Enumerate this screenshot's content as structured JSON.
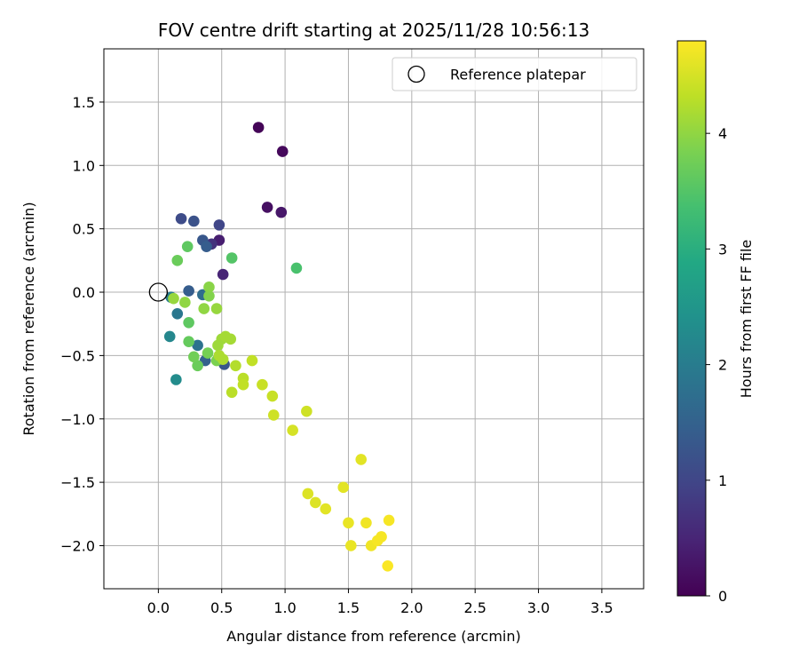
{
  "chart_data": {
    "type": "scatter",
    "title": "FOV centre drift starting at 2025/11/28 10:56:13",
    "xlabel": "Angular distance from reference (arcmin)",
    "ylabel": "Rotation from reference (arcmin)",
    "xlim": [
      -0.43,
      3.83
    ],
    "ylim": [
      -2.34,
      1.92
    ],
    "xticks": [
      0.0,
      0.5,
      1.0,
      1.5,
      2.0,
      2.5,
      3.0,
      3.5
    ],
    "xtick_labels": [
      "0.0",
      "0.5",
      "1.0",
      "1.5",
      "2.0",
      "2.5",
      "3.0",
      "3.5"
    ],
    "yticks": [
      1.5,
      1.0,
      0.5,
      0.0,
      -0.5,
      -1.0,
      -1.5,
      -2.0
    ],
    "ytick_labels": [
      "1.5",
      "1.0",
      "0.5",
      "0.0",
      "−0.5",
      "−1.0",
      "−1.5",
      "−2.0"
    ],
    "grid": true,
    "legend": {
      "position": "top-right",
      "entries": [
        "Reference platepar"
      ]
    },
    "reference_point": {
      "x": 0.0,
      "y": 0.0
    },
    "colorbar": {
      "label": "Hours from first FF file",
      "range": [
        0,
        4.8
      ],
      "ticks": [
        0,
        1,
        2,
        3,
        4
      ],
      "tick_labels": [
        "0",
        "1",
        "2",
        "3",
        "4"
      ],
      "colormap": "viridis"
    },
    "points": [
      {
        "x": 0.79,
        "y": 1.3,
        "h": 0.05
      },
      {
        "x": 0.98,
        "y": 1.11,
        "h": 0.1
      },
      {
        "x": 0.86,
        "y": 0.67,
        "h": 0.2
      },
      {
        "x": 0.97,
        "y": 0.63,
        "h": 0.3
      },
      {
        "x": 0.48,
        "y": 0.41,
        "h": 0.4
      },
      {
        "x": 0.51,
        "y": 0.14,
        "h": 0.5
      },
      {
        "x": 0.42,
        "y": 0.38,
        "h": 0.7
      },
      {
        "x": 0.48,
        "y": 0.53,
        "h": 1.0
      },
      {
        "x": 0.18,
        "y": 0.58,
        "h": 1.1
      },
      {
        "x": 0.28,
        "y": 0.56,
        "h": 1.2
      },
      {
        "x": 0.35,
        "y": 0.41,
        "h": 1.3
      },
      {
        "x": 0.38,
        "y": 0.36,
        "h": 1.4
      },
      {
        "x": 0.24,
        "y": 0.01,
        "h": 1.4
      },
      {
        "x": 0.52,
        "y": -0.57,
        "h": 1.3
      },
      {
        "x": 0.37,
        "y": -0.54,
        "h": 1.5
      },
      {
        "x": 0.35,
        "y": -0.02,
        "h": 1.7
      },
      {
        "x": 0.31,
        "y": -0.42,
        "h": 1.8
      },
      {
        "x": 0.15,
        "y": -0.17,
        "h": 1.9
      },
      {
        "x": 0.1,
        "y": -0.04,
        "h": 2.0
      },
      {
        "x": 0.09,
        "y": -0.35,
        "h": 2.2
      },
      {
        "x": 0.14,
        "y": -0.69,
        "h": 2.3
      },
      {
        "x": 1.09,
        "y": 0.19,
        "h": 3.4
      },
      {
        "x": 0.58,
        "y": 0.27,
        "h": 3.5
      },
      {
        "x": 0.23,
        "y": 0.36,
        "h": 3.6
      },
      {
        "x": 0.15,
        "y": 0.25,
        "h": 3.7
      },
      {
        "x": 0.24,
        "y": -0.24,
        "h": 3.6
      },
      {
        "x": 0.24,
        "y": -0.39,
        "h": 3.65
      },
      {
        "x": 0.31,
        "y": -0.58,
        "h": 3.7
      },
      {
        "x": 0.28,
        "y": -0.51,
        "h": 3.75
      },
      {
        "x": 0.39,
        "y": -0.48,
        "h": 3.8
      },
      {
        "x": 0.46,
        "y": -0.54,
        "h": 3.85
      },
      {
        "x": 0.4,
        "y": -0.03,
        "h": 3.9
      },
      {
        "x": 0.4,
        "y": 0.04,
        "h": 3.95
      },
      {
        "x": 0.21,
        "y": -0.08,
        "h": 4.0
      },
      {
        "x": 0.36,
        "y": -0.13,
        "h": 4.0
      },
      {
        "x": 0.46,
        "y": -0.13,
        "h": 4.05
      },
      {
        "x": 0.12,
        "y": -0.05,
        "h": 4.05
      },
      {
        "x": 0.47,
        "y": -0.42,
        "h": 4.1
      },
      {
        "x": 0.5,
        "y": -0.37,
        "h": 4.1
      },
      {
        "x": 0.53,
        "y": -0.35,
        "h": 4.15
      },
      {
        "x": 0.57,
        "y": -0.37,
        "h": 4.15
      },
      {
        "x": 0.48,
        "y": -0.5,
        "h": 4.2
      },
      {
        "x": 0.51,
        "y": -0.53,
        "h": 4.2
      },
      {
        "x": 0.61,
        "y": -0.58,
        "h": 4.25
      },
      {
        "x": 0.58,
        "y": -0.79,
        "h": 4.3
      },
      {
        "x": 0.67,
        "y": -0.68,
        "h": 4.3
      },
      {
        "x": 0.67,
        "y": -0.73,
        "h": 4.35
      },
      {
        "x": 0.74,
        "y": -0.54,
        "h": 4.35
      },
      {
        "x": 0.82,
        "y": -0.73,
        "h": 4.4
      },
      {
        "x": 0.9,
        "y": -0.82,
        "h": 4.4
      },
      {
        "x": 0.91,
        "y": -0.97,
        "h": 4.45
      },
      {
        "x": 1.17,
        "y": -0.94,
        "h": 4.45
      },
      {
        "x": 1.06,
        "y": -1.09,
        "h": 4.5
      },
      {
        "x": 1.18,
        "y": -1.59,
        "h": 4.55
      },
      {
        "x": 1.24,
        "y": -1.66,
        "h": 4.55
      },
      {
        "x": 1.32,
        "y": -1.71,
        "h": 4.6
      },
      {
        "x": 1.46,
        "y": -1.54,
        "h": 4.6
      },
      {
        "x": 1.6,
        "y": -1.32,
        "h": 4.6
      },
      {
        "x": 1.5,
        "y": -1.82,
        "h": 4.65
      },
      {
        "x": 1.52,
        "y": -2.0,
        "h": 4.65
      },
      {
        "x": 1.64,
        "y": -1.82,
        "h": 4.7
      },
      {
        "x": 1.68,
        "y": -2.0,
        "h": 4.7
      },
      {
        "x": 1.73,
        "y": -1.96,
        "h": 4.75
      },
      {
        "x": 1.76,
        "y": -1.93,
        "h": 4.75
      },
      {
        "x": 1.82,
        "y": -1.8,
        "h": 4.75
      },
      {
        "x": 1.81,
        "y": -2.16,
        "h": 4.78
      }
    ]
  }
}
